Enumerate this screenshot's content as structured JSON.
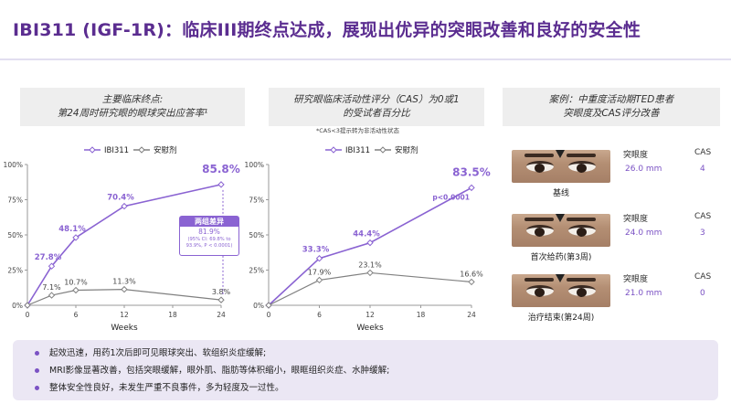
{
  "header": {
    "title": "IBI311 (IGF-1R)：临床III期终点达成，展现出优异的突眼改善和良好的安全性"
  },
  "colors": {
    "accent": "#8a63d2",
    "placebo": "#808080",
    "title": "#5b2d90"
  },
  "panel1": {
    "title_line1": "主要临床终点:",
    "title_line2": "第24周时研究眼的眼球突出应答率¹",
    "annotation": {
      "title": "两组差异",
      "value": "81.9%",
      "detail_line1": "(95% CI: 69.8% to",
      "detail_line2": "93.9%, P < 0.0001)"
    }
  },
  "panel2": {
    "title_line1": "研究眼临床活动性评分（CAS）为0或1",
    "title_line2": "的受试者百分比",
    "footnote": "*CAS<3提示转为非活动性状态"
  },
  "panel3": {
    "title_line1": "案例：中重度活动期TED患者",
    "title_line2": "突眼度及CAS评分改善",
    "col_proptosis": "突眼度",
    "col_cas": "CAS",
    "cases": [
      {
        "caption": "基线",
        "proptosis": "26.0 mm",
        "cas": "4"
      },
      {
        "caption": "首次给药(第3周)",
        "proptosis": "24.0 mm",
        "cas": "3"
      },
      {
        "caption": "治疗结束(第24周)",
        "proptosis": "21.0 mm",
        "cas": "0"
      }
    ]
  },
  "bullets": [
    "起效迅速，用药1次后即可见眼球突出、软组织炎症缓解;",
    "MRI影像显著改善，包括突眼缓解，眼外肌、脂肪等体积缩小，眼眶组织炎症、水肿缓解;",
    "整体安全性良好，未发生严重不良事件，多为轻度及一过性。"
  ],
  "chart_data": [
    {
      "type": "line",
      "title": "主要临床终点: 第24周时研究眼的眼球突出应答率",
      "xlabel": "Weeks",
      "ylabel": "",
      "x_ticks": [
        0,
        6,
        12,
        18,
        24
      ],
      "y_ticks": [
        "0%",
        "25%",
        "50%",
        "75%",
        "100%"
      ],
      "xlim": [
        0,
        24
      ],
      "ylim": [
        0,
        100
      ],
      "legend": [
        "IBI311",
        "安慰剂"
      ],
      "series": [
        {
          "name": "IBI311",
          "x": [
            0,
            3,
            6,
            12,
            24
          ],
          "y": [
            0,
            27.8,
            48.1,
            70.4,
            85.8
          ],
          "labels": [
            "",
            "27.8%",
            "48.1%",
            "70.4%",
            "85.8%"
          ]
        },
        {
          "name": "安慰剂",
          "x": [
            0,
            3,
            6,
            12,
            24
          ],
          "y": [
            0,
            7.1,
            10.7,
            11.3,
            3.8
          ],
          "labels": [
            "",
            "7.1%",
            "10.7%",
            "11.3%",
            "3.8%"
          ]
        }
      ]
    },
    {
      "type": "line",
      "title": "研究眼临床活动性评分（CAS）为0或1的受试者百分比",
      "xlabel": "Weeks",
      "ylabel": "",
      "x_ticks": [
        0,
        6,
        12,
        18,
        24
      ],
      "y_ticks": [
        "0%",
        "25%",
        "50%",
        "75%",
        "100%"
      ],
      "xlim": [
        0,
        24
      ],
      "ylim": [
        0,
        100
      ],
      "legend": [
        "IBI311",
        "安慰剂"
      ],
      "annotation": "p<0.0001",
      "series": [
        {
          "name": "IBI311",
          "x": [
            0,
            6,
            12,
            24
          ],
          "y": [
            0,
            33.3,
            44.4,
            83.5
          ],
          "labels": [
            "",
            "33.3%",
            "44.4%",
            "83.5%"
          ]
        },
        {
          "name": "安慰剂",
          "x": [
            0,
            6,
            12,
            24
          ],
          "y": [
            0,
            17.9,
            23.1,
            16.6
          ],
          "labels": [
            "",
            "17.9%",
            "23.1%",
            "16.6%"
          ]
        }
      ]
    }
  ]
}
